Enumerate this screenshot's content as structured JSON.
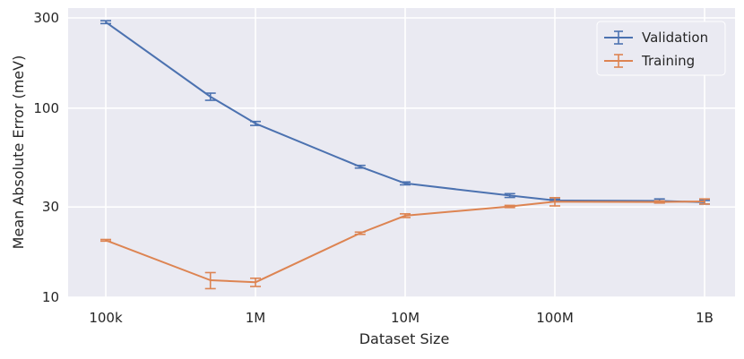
{
  "chart_data": {
    "type": "line",
    "xlabel": "Dataset Size",
    "ylabel": "Mean Absolute Error (meV)",
    "xscale": "log",
    "yscale": "log",
    "xlim": [
      100000,
      1000000000
    ],
    "ylim": [
      10,
      300
    ],
    "xticks": [
      {
        "value": 100000,
        "label": "100k"
      },
      {
        "value": 1000000,
        "label": "1M"
      },
      {
        "value": 10000000,
        "label": "10M"
      },
      {
        "value": 100000000,
        "label": "100M"
      },
      {
        "value": 1000000000,
        "label": "1B"
      }
    ],
    "yticks": [
      {
        "value": 10,
        "label": "10"
      },
      {
        "value": 30,
        "label": "30"
      },
      {
        "value": 100,
        "label": "100"
      },
      {
        "value": 300,
        "label": "300"
      }
    ],
    "grid": true,
    "legend_position": "top-right",
    "series": [
      {
        "name": "Validation",
        "color": "#4C72B0",
        "x": [
          100000,
          500000,
          1000000,
          5000000,
          10000000,
          50000000,
          100000000,
          500000000,
          1000000000
        ],
        "y": [
          285,
          115,
          83,
          49,
          40,
          34.5,
          32.5,
          32.3,
          31.8
        ],
        "yerr": [
          5,
          5,
          2,
          0.8,
          0.7,
          0.8,
          0.5,
          0.8,
          0.7
        ]
      },
      {
        "name": "Training",
        "color": "#DD8452",
        "x": [
          100000,
          500000,
          1000000,
          5000000,
          10000000,
          50000000,
          100000000,
          500000000,
          1000000000
        ],
        "y": [
          20,
          12.3,
          12.0,
          21.8,
          27,
          30.2,
          32,
          31.9,
          32.1
        ],
        "yerr": [
          0.2,
          1.2,
          0.6,
          0.3,
          0.6,
          0.4,
          1.6,
          0.4,
          1.0
        ]
      }
    ]
  }
}
